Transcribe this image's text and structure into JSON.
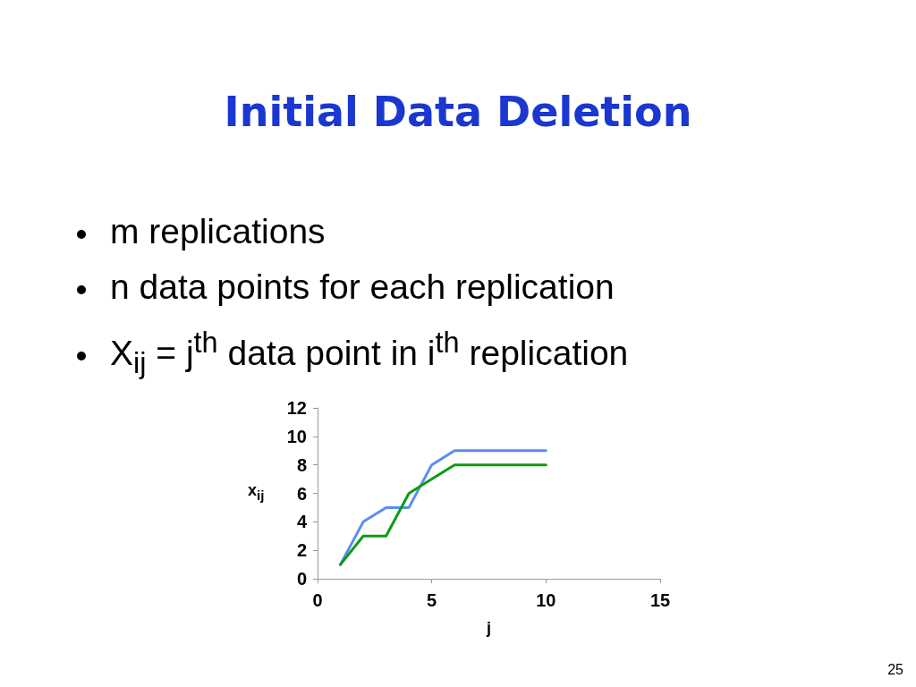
{
  "chart_data": {
    "type": "line",
    "title": "Initial Data Deletion",
    "annotations": [
      "m replications",
      "n data points for each replication",
      "X$_{ij}$ = j$^{th}$ data point in i$^{th}$ replication",
      "25"
    ],
    "xlabel": "j",
    "ylabel": "x$_{ij}$",
    "x": [
      1,
      2,
      3,
      4,
      5,
      6,
      7,
      8,
      9,
      10
    ],
    "series": [
      {
        "color": "#5b8def",
        "values": [
          1,
          4,
          5,
          5,
          8,
          9,
          9,
          9,
          9,
          9
        ]
      },
      {
        "color": "#0f9a14",
        "values": [
          1,
          3,
          3,
          6,
          7,
          8,
          8,
          8,
          8,
          8
        ]
      }
    ],
    "xlim": [
      0,
      15
    ],
    "xticks": [
      0,
      5,
      10,
      15
    ],
    "ylim": [
      0,
      12
    ],
    "yticks": [
      0,
      2,
      4,
      6,
      8,
      10,
      12
    ],
    "grid": false,
    "marker": "none",
    "line_style": "solid"
  }
}
